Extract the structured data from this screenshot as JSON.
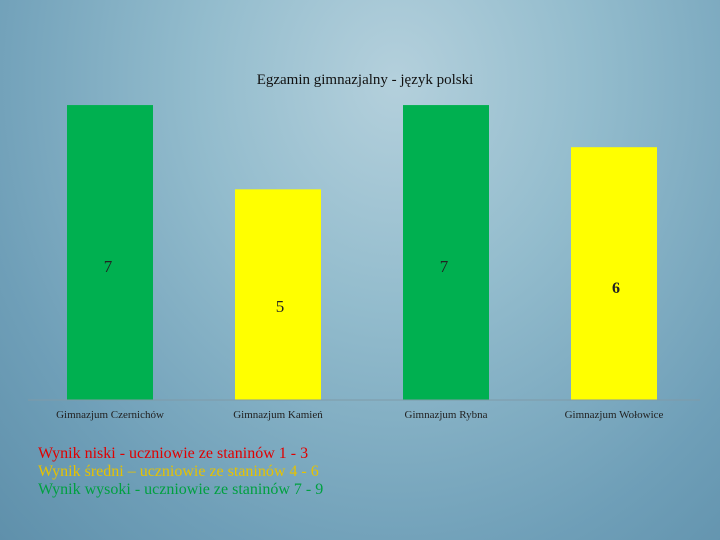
{
  "chart_data": {
    "type": "bar",
    "title": "Egzamin gimnazjalny - język polski",
    "categories": [
      "Gimnazjum Czernichów",
      "Gimnazjum Kamień",
      "Gimnazjum Rybna",
      "Gimnazjum Wołowice"
    ],
    "values": [
      7,
      5,
      7,
      6
    ],
    "value_labels": [
      "7",
      "5",
      "7",
      "6"
    ],
    "bar_colors": [
      "#00b050",
      "#ffff00",
      "#00b050",
      "#ffff00"
    ],
    "xlabel": "",
    "ylabel": "",
    "ylim": [
      0,
      7.5
    ],
    "grid": false,
    "legend": "none"
  },
  "legend_notes": [
    {
      "text": "Wynik niski - uczniowie ze staninów 1 - 3",
      "color": "#e00000"
    },
    {
      "text": "Wynik średni – uczniowie ze staninów 4 - 6",
      "color": "#e6c200"
    },
    {
      "text": "Wynik wysoki - uczniowie ze staninów 7 - 9",
      "color": "#00a040"
    }
  ]
}
